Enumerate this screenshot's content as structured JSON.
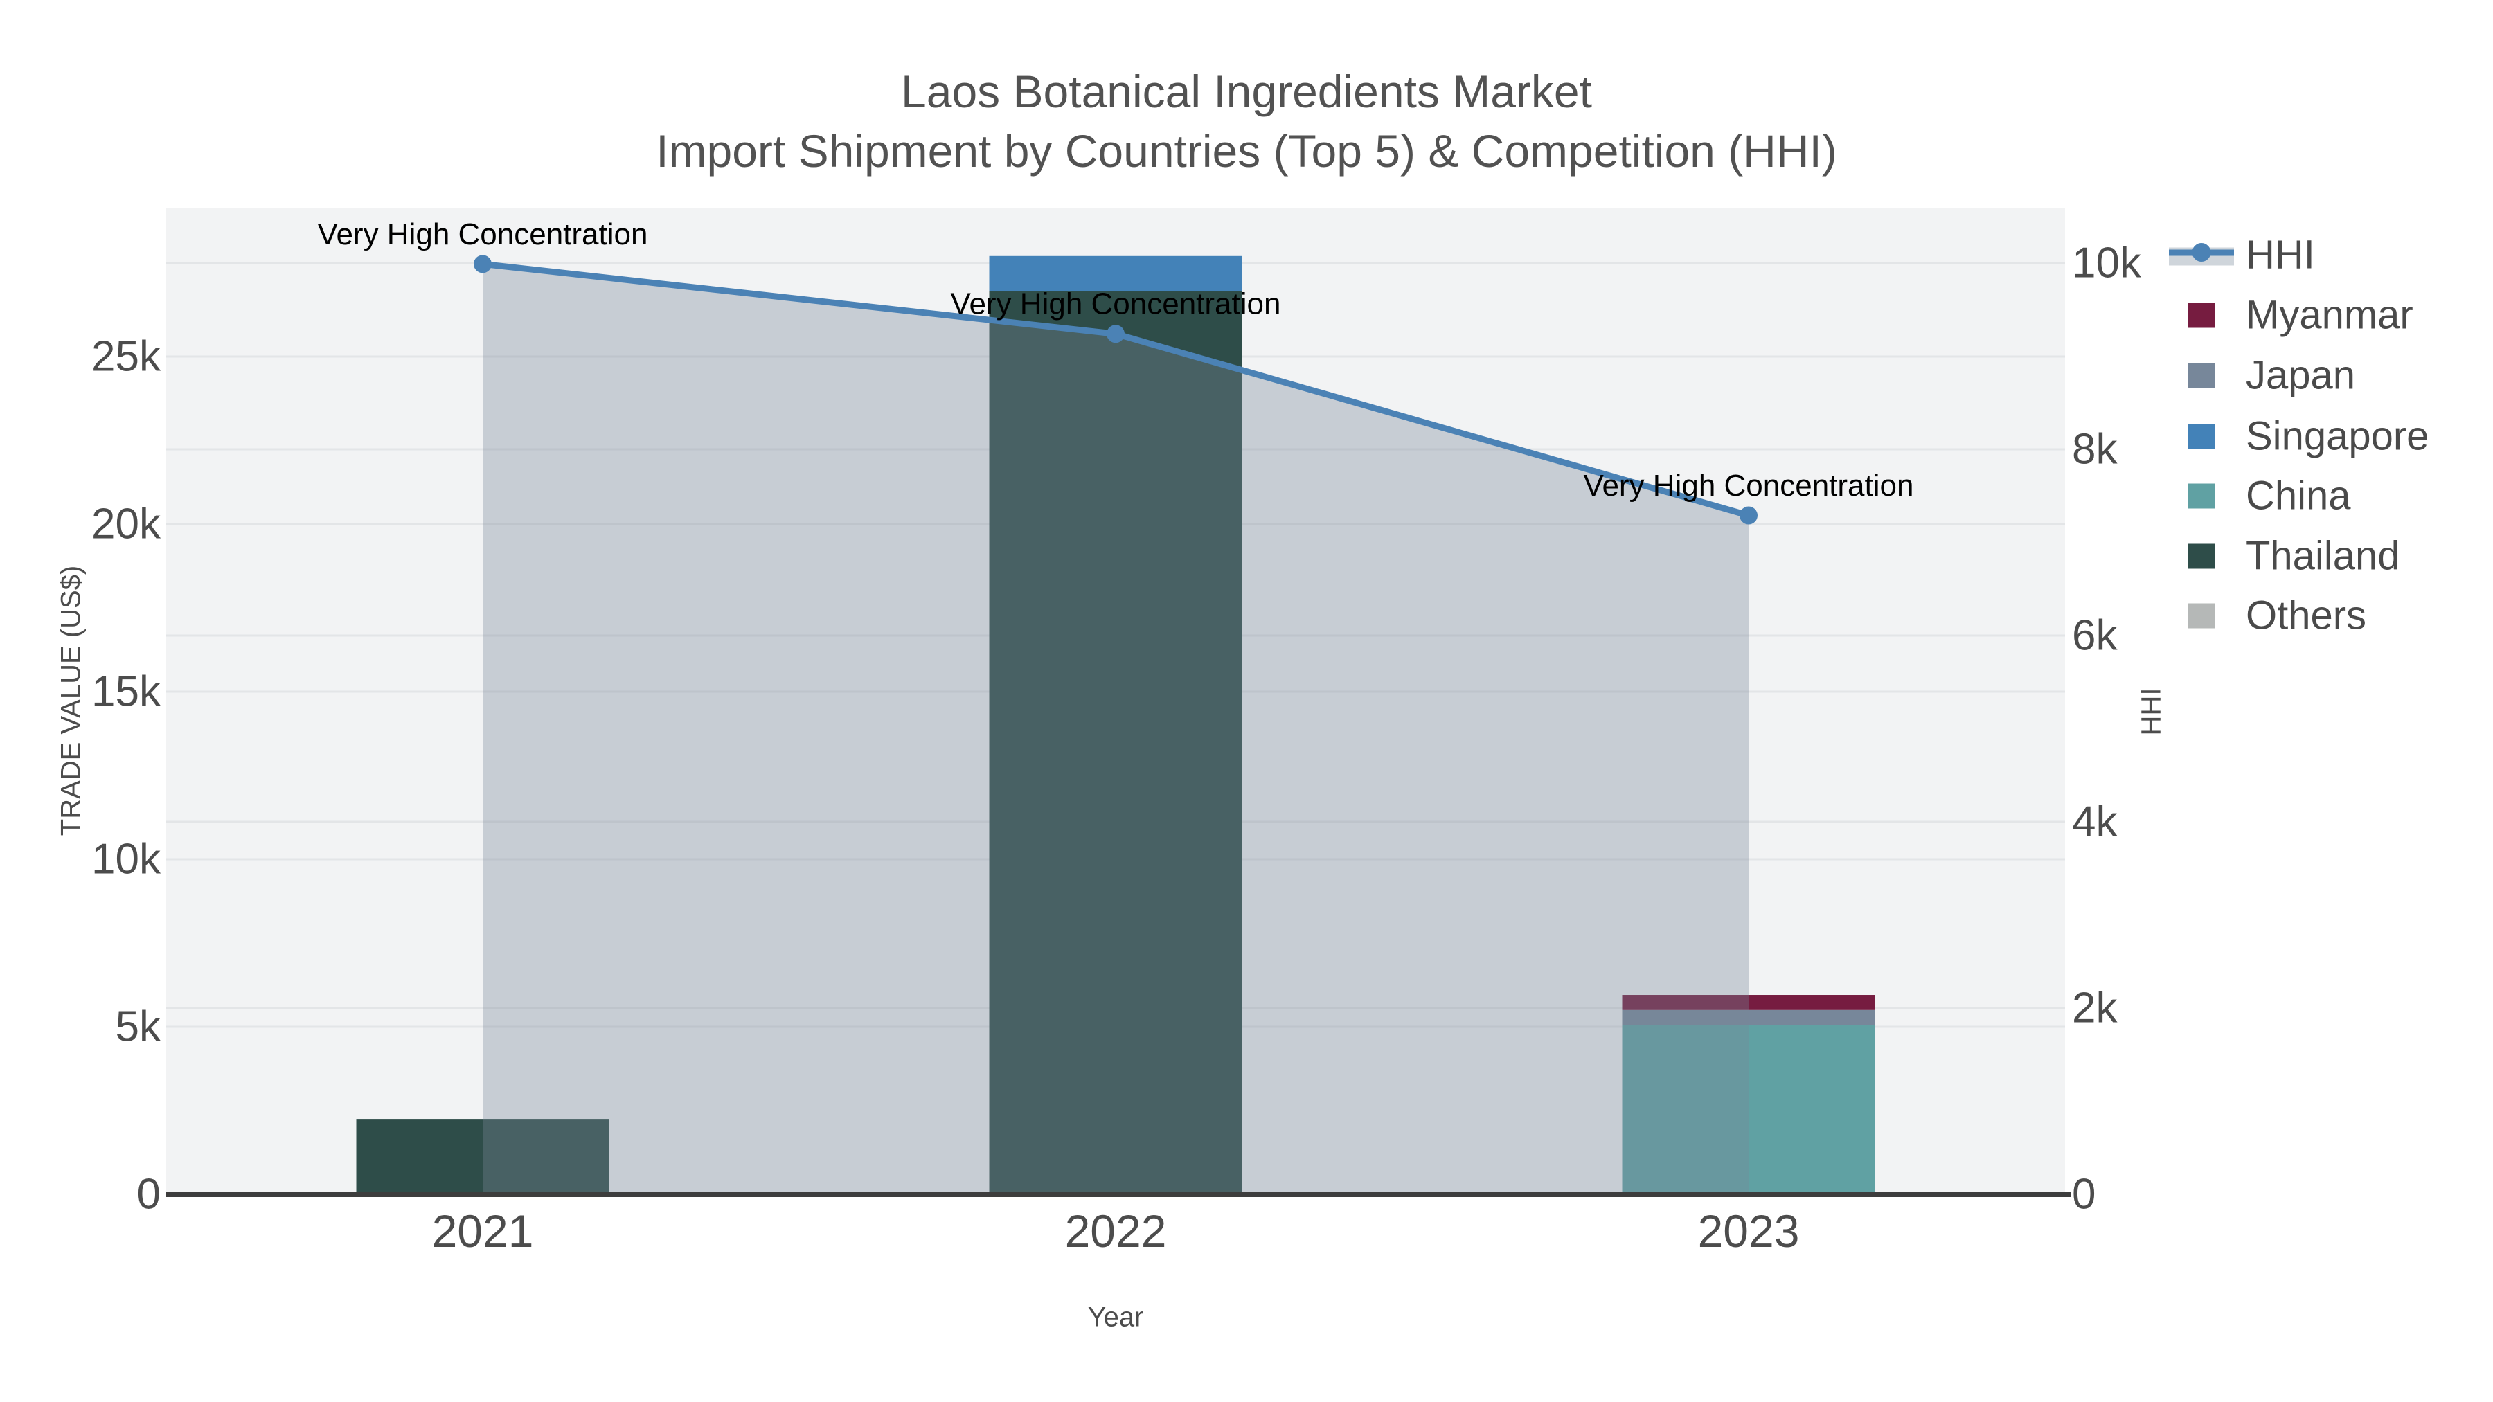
{
  "title": {
    "line1": "Laos Botanical Ingredients Market",
    "line2": "Import Shipment by Countries (Top 5) & Competition (HHI)"
  },
  "axes": {
    "x": {
      "title": "Year",
      "tick_labels": [
        "2021",
        "2022",
        "2023"
      ]
    },
    "y_left": {
      "title": "TRADE VALUE (US$)",
      "tick_labels": [
        "0",
        "5k",
        "10k",
        "15k",
        "20k",
        "25k"
      ],
      "tick_values": [
        0,
        5000,
        10000,
        15000,
        20000,
        25000
      ]
    },
    "y_right": {
      "title": "HHI",
      "tick_labels": [
        "0",
        "2k",
        "4k",
        "6k",
        "8k",
        "10k"
      ],
      "tick_values": [
        0,
        2000,
        4000,
        6000,
        8000,
        10000
      ]
    }
  },
  "legend": {
    "items": [
      {
        "label": "HHI",
        "type": "line",
        "color": "#4b82b5",
        "band_color": "#cfd5db"
      },
      {
        "label": "Myanmar",
        "type": "swatch",
        "color": "#761c40"
      },
      {
        "label": "Japan",
        "type": "swatch",
        "color": "#77879a"
      },
      {
        "label": "Singapore",
        "type": "swatch",
        "color": "#4382b8"
      },
      {
        "label": "China",
        "type": "swatch",
        "color": "#60a1a3"
      },
      {
        "label": "Thailand",
        "type": "swatch",
        "color": "#2e4d49"
      },
      {
        "label": "Others",
        "type": "swatch",
        "color": "#b5b8b7"
      }
    ]
  },
  "colors": {
    "plot_background": "#f2f3f4",
    "gridline": "#e3e5e7",
    "axis_line": "#3d3d3d",
    "annotation_text": "#000000"
  },
  "chart_data": {
    "type": "combo",
    "title": "Laos Botanical Ingredients Market — Import Shipment by Countries (Top 5) & Competition (HHI)",
    "categories": [
      "2021",
      "2022",
      "2023"
    ],
    "bar_series": [
      {
        "name": "Others",
        "color": "#b5b8b7",
        "values": [
          0,
          0,
          0
        ]
      },
      {
        "name": "Thailand",
        "color": "#2e4d49",
        "values": [
          2250,
          26950,
          0
        ]
      },
      {
        "name": "China",
        "color": "#60a1a3",
        "values": [
          0,
          0,
          5050
        ]
      },
      {
        "name": "Singapore",
        "color": "#4382b8",
        "values": [
          0,
          1050,
          0
        ]
      },
      {
        "name": "Japan",
        "color": "#77879a",
        "values": [
          0,
          0,
          450
        ]
      },
      {
        "name": "Myanmar",
        "color": "#761c40",
        "values": [
          0,
          0,
          450
        ]
      }
    ],
    "line_series": {
      "name": "HHI",
      "axis": "right",
      "color": "#4b82b5",
      "area_fill": "rgba(119,136,153,0.35)",
      "values": [
        9990,
        9240,
        7290
      ]
    },
    "annotations": [
      {
        "category": "2021",
        "text": "Very High Concentration"
      },
      {
        "category": "2022",
        "text": "Very High Concentration"
      },
      {
        "category": "2023",
        "text": "Very High Concentration"
      }
    ],
    "xlabel": "Year",
    "ylabel_left": "TRADE VALUE (US$)",
    "ylabel_right": "HHI",
    "ylim_left": [
      0,
      29450
    ],
    "ylim_right": [
      0,
      10600
    ],
    "grid": true,
    "legend_position": "right",
    "bar_mode": "stack"
  }
}
